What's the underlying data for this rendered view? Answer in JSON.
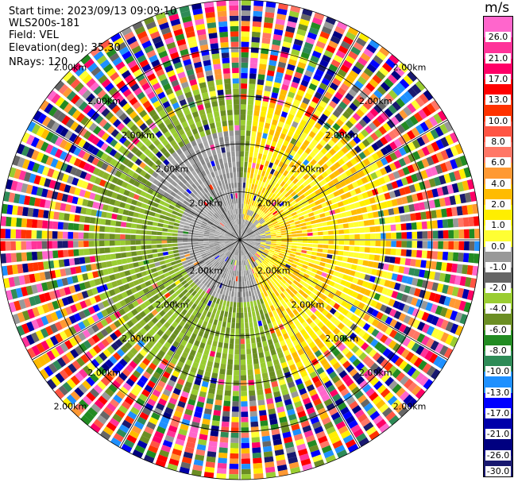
{
  "header": {
    "start_time": "Start time: 2023/09/13 09:09:10",
    "instrument": "WLS200s-181",
    "field": "Field: VEL",
    "elevation": "Elevation(deg): 35.30",
    "nrays": "NRays: 120"
  },
  "colorbar": {
    "unit": "m/s",
    "labels": [
      "26.0",
      "21.0",
      "17.0",
      "13.0",
      "10.0",
      "8.0",
      "6.0",
      "4.0",
      "2.0",
      "1.0",
      "0.0",
      "-1.0",
      "-2.0",
      "-4.0",
      "-6.0",
      "-8.0",
      "-10.0",
      "-13.0",
      "-17.0",
      "-21.0",
      "-26.0",
      "-30.0"
    ],
    "colors": [
      "#ff66cc",
      "#ff3399",
      "#ff0066",
      "#ff0000",
      "#ff3300",
      "#ff5544",
      "#ff7766",
      "#ff9933",
      "#ffbb00",
      "#ffee00",
      "#ffff33",
      "#999999",
      "#666666",
      "#9acd32",
      "#6b8e23",
      "#228b22",
      "#2e8b57",
      "#1e90ff",
      "#0000ff",
      "#0000aa",
      "#000080",
      "#191970"
    ]
  },
  "chart_data": {
    "type": "ppi",
    "field": "VEL",
    "units": "m/s",
    "elevation_deg": 35.3,
    "n_rays": 120,
    "range_rings_km": [
      1.0,
      2.0,
      3.0,
      4.0,
      5.0
    ],
    "range_ring_label": "2.00km",
    "colorbar_ticks": [
      26.0,
      21.0,
      17.0,
      13.0,
      10.0,
      8.0,
      6.0,
      4.0,
      2.0,
      1.0,
      0.0,
      -1.0,
      -2.0,
      -4.0,
      -6.0,
      -8.0,
      -10.0,
      -13.0,
      -17.0,
      -21.0,
      -26.0,
      -30.0
    ],
    "regions": [
      {
        "description": "yellow (positive, ~1–4 m/s)",
        "sector": "north-east to south-east",
        "range_km": [
          0.3,
          3.0
        ]
      },
      {
        "description": "gray (~0 m/s)",
        "sector": "west / centre",
        "range_km": [
          0.0,
          2.2
        ]
      },
      {
        "description": "olive green (negative, ~-1 to -4 m/s)",
        "sector": "south-west to north-west",
        "range_km": [
          0.5,
          3.0
        ]
      },
      {
        "description": "noisy mixed colours",
        "sector": "all",
        "range_km": [
          3.0,
          5.0
        ]
      }
    ]
  }
}
